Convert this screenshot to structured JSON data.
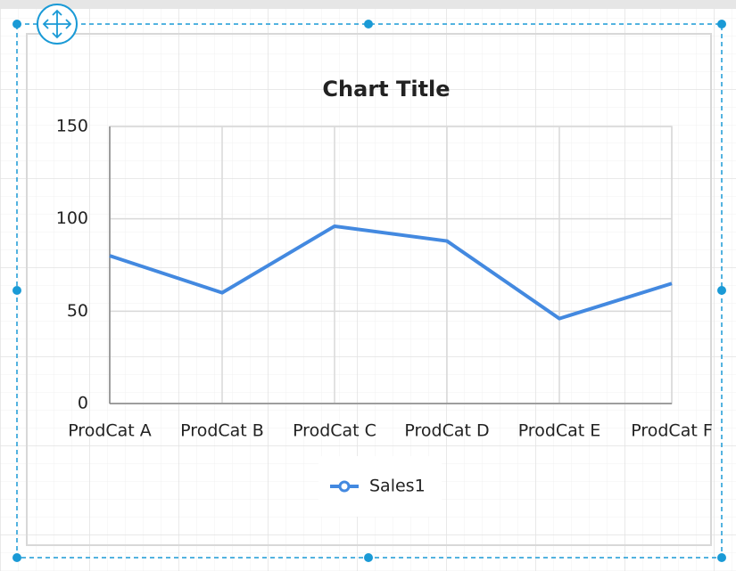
{
  "chart_data": {
    "type": "line",
    "title": "Chart Title",
    "categories": [
      "ProdCat A",
      "ProdCat B",
      "ProdCat C",
      "ProdCat D",
      "ProdCat E",
      "ProdCat F"
    ],
    "series": [
      {
        "name": "Sales1",
        "color": "#4389e0",
        "values": [
          80,
          60,
          96,
          88,
          46,
          65
        ]
      }
    ],
    "ylim": [
      0,
      150
    ],
    "yticks": [
      0,
      50,
      100,
      150
    ],
    "grid": true,
    "legend": "bottom"
  }
}
